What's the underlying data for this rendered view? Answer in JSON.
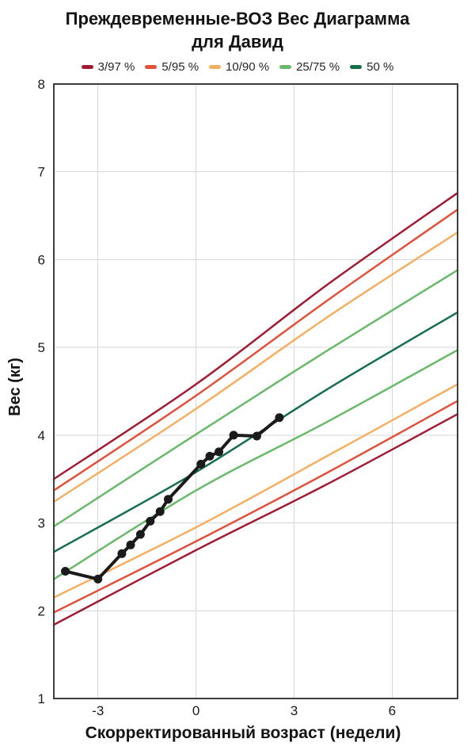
{
  "title": {
    "line1": "Преждевременные-ВОЗ Вес Диаграмма",
    "line2": "для Давид"
  },
  "legend": {
    "items": [
      {
        "label": "3/97 %",
        "color": "#a11c33"
      },
      {
        "label": "5/95 %",
        "color": "#e0523c"
      },
      {
        "label": "10/90 %",
        "color": "#f5af62"
      },
      {
        "label": "25/75 %",
        "color": "#68b96a"
      },
      {
        "label": "50 %",
        "color": "#156f4a"
      }
    ]
  },
  "chart_data": {
    "type": "line",
    "title": "Преждевременные-ВОЗ Вес Диаграмма для Давид",
    "xlabel": "Скорректированный возраст (недели)",
    "ylabel": "Вес (кг)",
    "xlim": [
      -4.35,
      8
    ],
    "ylim": [
      1,
      8
    ],
    "xticks": [
      -3,
      0,
      3,
      6
    ],
    "yticks": [
      1,
      2,
      3,
      4,
      5,
      6,
      7,
      8
    ],
    "grid": true,
    "legend_position": "top",
    "axis_color": "#3d3d3d",
    "grid_color": "#d7d7d7",
    "percentile_series": [
      {
        "name": "97",
        "color": "#a11c33",
        "x": [
          -4.35,
          0,
          4,
          8
        ],
        "y": [
          3.5,
          4.58,
          5.71,
          6.76
        ]
      },
      {
        "name": "95",
        "color": "#e0523c",
        "x": [
          -4.35,
          0,
          4,
          8
        ],
        "y": [
          3.37,
          4.45,
          5.53,
          6.57
        ]
      },
      {
        "name": "90",
        "color": "#f5af62",
        "x": [
          -4.35,
          0,
          4,
          8
        ],
        "y": [
          3.24,
          4.3,
          5.34,
          6.31
        ]
      },
      {
        "name": "75",
        "color": "#68b96a",
        "x": [
          -4.35,
          0,
          4,
          8
        ],
        "y": [
          2.96,
          4.01,
          4.96,
          5.88
        ]
      },
      {
        "name": "50",
        "color": "#156f4a",
        "x": [
          -4.35,
          0,
          4,
          8
        ],
        "y": [
          2.67,
          3.58,
          4.52,
          5.4
        ]
      },
      {
        "name": "25",
        "color": "#68b96a",
        "x": [
          -4.35,
          0,
          4,
          8
        ],
        "y": [
          2.36,
          3.37,
          4.15,
          4.97
        ]
      },
      {
        "name": "10",
        "color": "#f5af62",
        "x": [
          -4.35,
          0,
          4,
          8
        ],
        "y": [
          2.15,
          2.95,
          3.76,
          4.58
        ]
      },
      {
        "name": "5",
        "color": "#e0523c",
        "x": [
          -4.35,
          0,
          4,
          8
        ],
        "y": [
          1.98,
          2.79,
          3.57,
          4.39
        ]
      },
      {
        "name": "3",
        "color": "#a11c33",
        "x": [
          -4.35,
          0,
          4,
          8
        ],
        "y": [
          1.84,
          2.69,
          3.44,
          4.24
        ]
      }
    ],
    "patient_series": {
      "color": "#1b1b1b",
      "points": [
        [
          -4.0,
          2.45
        ],
        [
          -3.0,
          2.36
        ],
        [
          -2.27,
          2.65
        ],
        [
          -2.0,
          2.75
        ],
        [
          -1.7,
          2.87
        ],
        [
          -1.4,
          3.02
        ],
        [
          -1.1,
          3.13
        ],
        [
          -0.85,
          3.27
        ],
        [
          0.15,
          3.67
        ],
        [
          0.42,
          3.76
        ],
        [
          0.7,
          3.81
        ],
        [
          1.15,
          4.0
        ],
        [
          1.86,
          3.99
        ],
        [
          2.55,
          4.2
        ]
      ]
    }
  }
}
